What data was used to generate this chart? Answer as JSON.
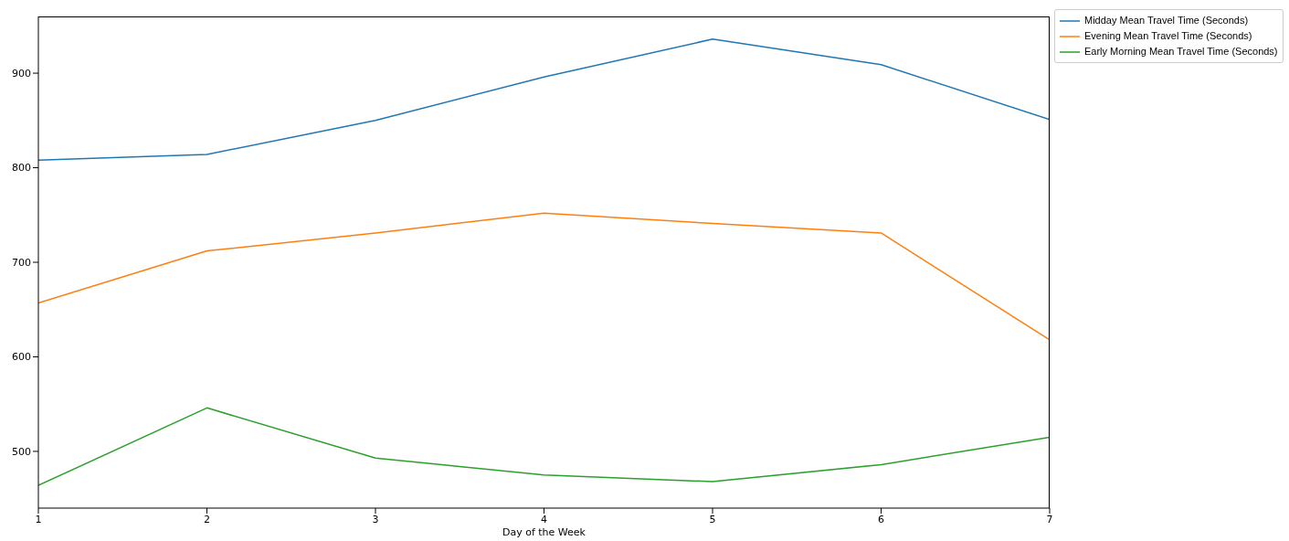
{
  "chart_data": {
    "type": "line",
    "xlabel": "Day of the Week",
    "x": [
      1,
      2,
      3,
      4,
      5,
      6,
      7
    ],
    "series": [
      {
        "name": "Midday Mean Travel Time (Seconds)",
        "color": "#1f77b4",
        "values": [
          808,
          814,
          850,
          896,
          936,
          909,
          851
        ]
      },
      {
        "name": "Evening Mean Travel Time (Seconds)",
        "color": "#ff7f0e",
        "values": [
          657,
          712,
          731,
          752,
          741,
          731,
          618
        ]
      },
      {
        "name": "Early Morning Mean Travel Time (Seconds)",
        "color": "#2ca02c",
        "values": [
          464,
          546,
          493,
          475,
          468,
          486,
          515
        ]
      }
    ],
    "xlim": [
      1,
      7
    ],
    "xticks": [
      1,
      2,
      3,
      4,
      5,
      6,
      7
    ],
    "ylim": [
      440,
      960
    ],
    "yticks": [
      500,
      600,
      700,
      800,
      900
    ],
    "grid": false,
    "legend": "top right",
    "marker": "none",
    "line_style": "solid"
  }
}
